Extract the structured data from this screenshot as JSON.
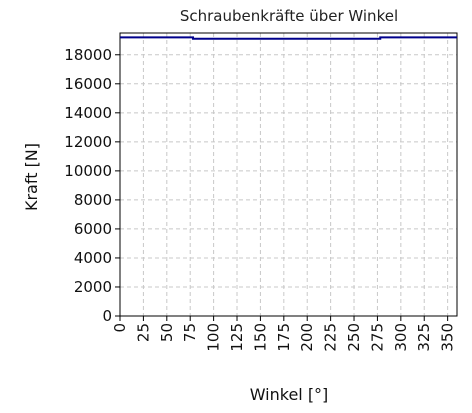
{
  "chart_data": {
    "type": "line",
    "title": "Schraubenkräfte über Winkel",
    "xlabel": "Winkel [°]",
    "ylabel": "Kraft [N]",
    "xlim": [
      0,
      360
    ],
    "ylim": [
      0,
      19500
    ],
    "x_ticks": [
      0,
      25,
      50,
      75,
      100,
      125,
      150,
      175,
      200,
      225,
      250,
      275,
      300,
      325,
      350
    ],
    "y_ticks": [
      0,
      2000,
      4000,
      6000,
      8000,
      10000,
      12000,
      14000,
      16000,
      18000
    ],
    "grid": true,
    "series": [
      {
        "color": "#00008b",
        "x": [
          0,
          78,
          78,
          278,
          278,
          360
        ],
        "y": [
          19200,
          19200,
          19100,
          19100,
          19200,
          19200
        ]
      }
    ]
  }
}
